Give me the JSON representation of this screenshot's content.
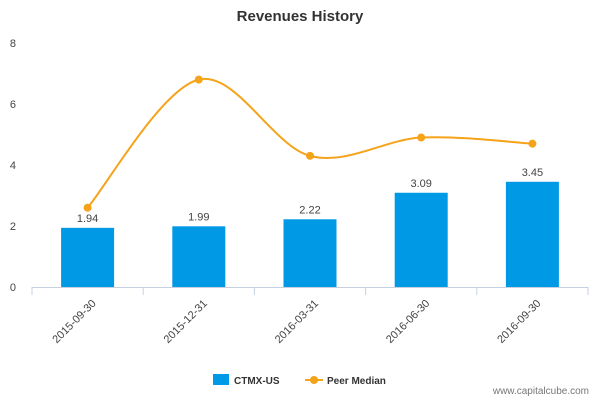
{
  "chart_data": {
    "type": "bar",
    "title": "Revenues History",
    "categories": [
      "2015-09-30",
      "2015-12-31",
      "2016-03-31",
      "2016-06-30",
      "2016-09-30"
    ],
    "series": [
      {
        "name": "CTMX-US",
        "type": "bar",
        "color": "#0099e6",
        "values": [
          1.94,
          1.99,
          2.22,
          3.09,
          3.45
        ],
        "labels": [
          "1.94",
          "1.99",
          "2.22",
          "3.09",
          "3.45"
        ]
      },
      {
        "name": "Peer Median",
        "type": "line",
        "color": "#f5a31a",
        "values": [
          2.6,
          6.8,
          4.3,
          4.9,
          4.7
        ]
      }
    ],
    "yticks": [
      "0",
      "2",
      "4",
      "6",
      "8"
    ],
    "ylim": [
      0,
      8
    ],
    "grid": false,
    "legend_position": "bottom-center"
  },
  "watermark": "www.capitalcube.com"
}
